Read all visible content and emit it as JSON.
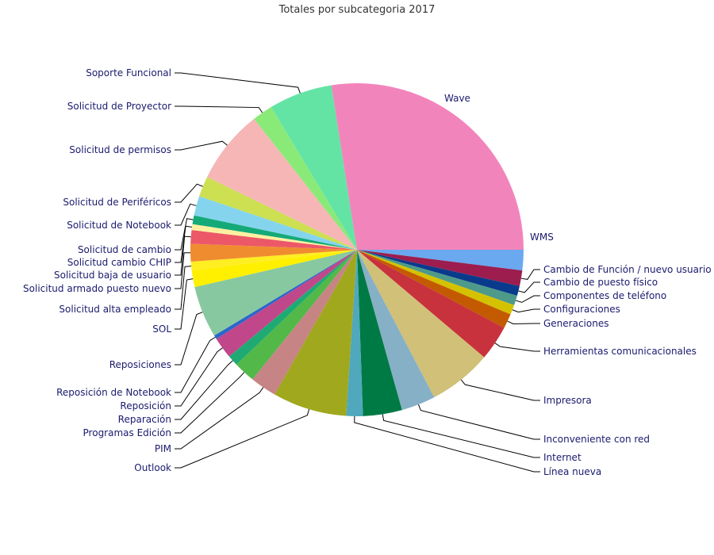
{
  "chart_data": {
    "type": "pie",
    "title": "Totales por subcategoria 2017",
    "slices": [
      {
        "label": "WMS",
        "value": 2.1,
        "color": "#6aa8f0"
      },
      {
        "label": "Cambio de Función / nuevo usuario",
        "value": 1.6,
        "color": "#9c1d4e"
      },
      {
        "label": "Cambio de puesto físico",
        "value": 1.0,
        "color": "#0a3a8c"
      },
      {
        "label": "Componentes de teléfono",
        "value": 1.0,
        "color": "#4d9a8a"
      },
      {
        "label": "Configuraciones",
        "value": 1.0,
        "color": "#d4c200"
      },
      {
        "label": "Generaciones",
        "value": 1.5,
        "color": "#c45a00"
      },
      {
        "label": "Herramientas comunicacionales",
        "value": 3.6,
        "color": "#c8323c"
      },
      {
        "label": "Impresora",
        "value": 6.5,
        "color": "#d0c078"
      },
      {
        "label": "Inconveniente con red",
        "value": 3.5,
        "color": "#86b0c6"
      },
      {
        "label": "Internet",
        "value": 4.0,
        "color": "#007a44"
      },
      {
        "label": "Línea nueva",
        "value": 1.7,
        "color": "#4fa8bc"
      },
      {
        "label": "Outlook",
        "value": 7.6,
        "color": "#a0a81e"
      },
      {
        "label": "PIM",
        "value": 2.7,
        "color": "#c68484"
      },
      {
        "label": "Programas Edición",
        "value": 2.2,
        "color": "#52b848"
      },
      {
        "label": "Reparación",
        "value": 1.1,
        "color": "#1faa74"
      },
      {
        "label": "Reposición",
        "value": 2.2,
        "color": "#c0478a"
      },
      {
        "label": "Reposición de Notebook",
        "value": 0.4,
        "color": "#2a66cc"
      },
      {
        "label": "Reposiciones",
        "value": 5.3,
        "color": "#88c8a0"
      },
      {
        "label": "SOL",
        "value": 1.7,
        "color": "#fff000"
      },
      {
        "label": "Solicitud alta empleado",
        "value": 0.9,
        "color": "#ffee22"
      },
      {
        "label": "Solicitud armado puesto nuevo",
        "value": 1.8,
        "color": "#f08c30"
      },
      {
        "label": "Solicitud baja de usuario",
        "value": 1.4,
        "color": "#ec5868"
      },
      {
        "label": "Solicitud cambio CHIP",
        "value": 0.6,
        "color": "#fcf0a0"
      },
      {
        "label": "Solicitud de cambio",
        "value": 0.9,
        "color": "#14aa78"
      },
      {
        "label": "Solicitud de Notebook",
        "value": 2.0,
        "color": "#84d4ee"
      },
      {
        "label": "Solicitud de Periféricos",
        "value": 2.1,
        "color": "#cce052"
      },
      {
        "label": "Solicitud de permisos",
        "value": 7.6,
        "color": "#f6b6b6"
      },
      {
        "label": "Solicitud de Proyector",
        "value": 2.1,
        "color": "#8aea78"
      },
      {
        "label": "Soporte Funcional",
        "value": 6.5,
        "color": "#64e4a4"
      },
      {
        "label": "Wave",
        "value": 29.0,
        "color": "#f284bc"
      }
    ]
  }
}
